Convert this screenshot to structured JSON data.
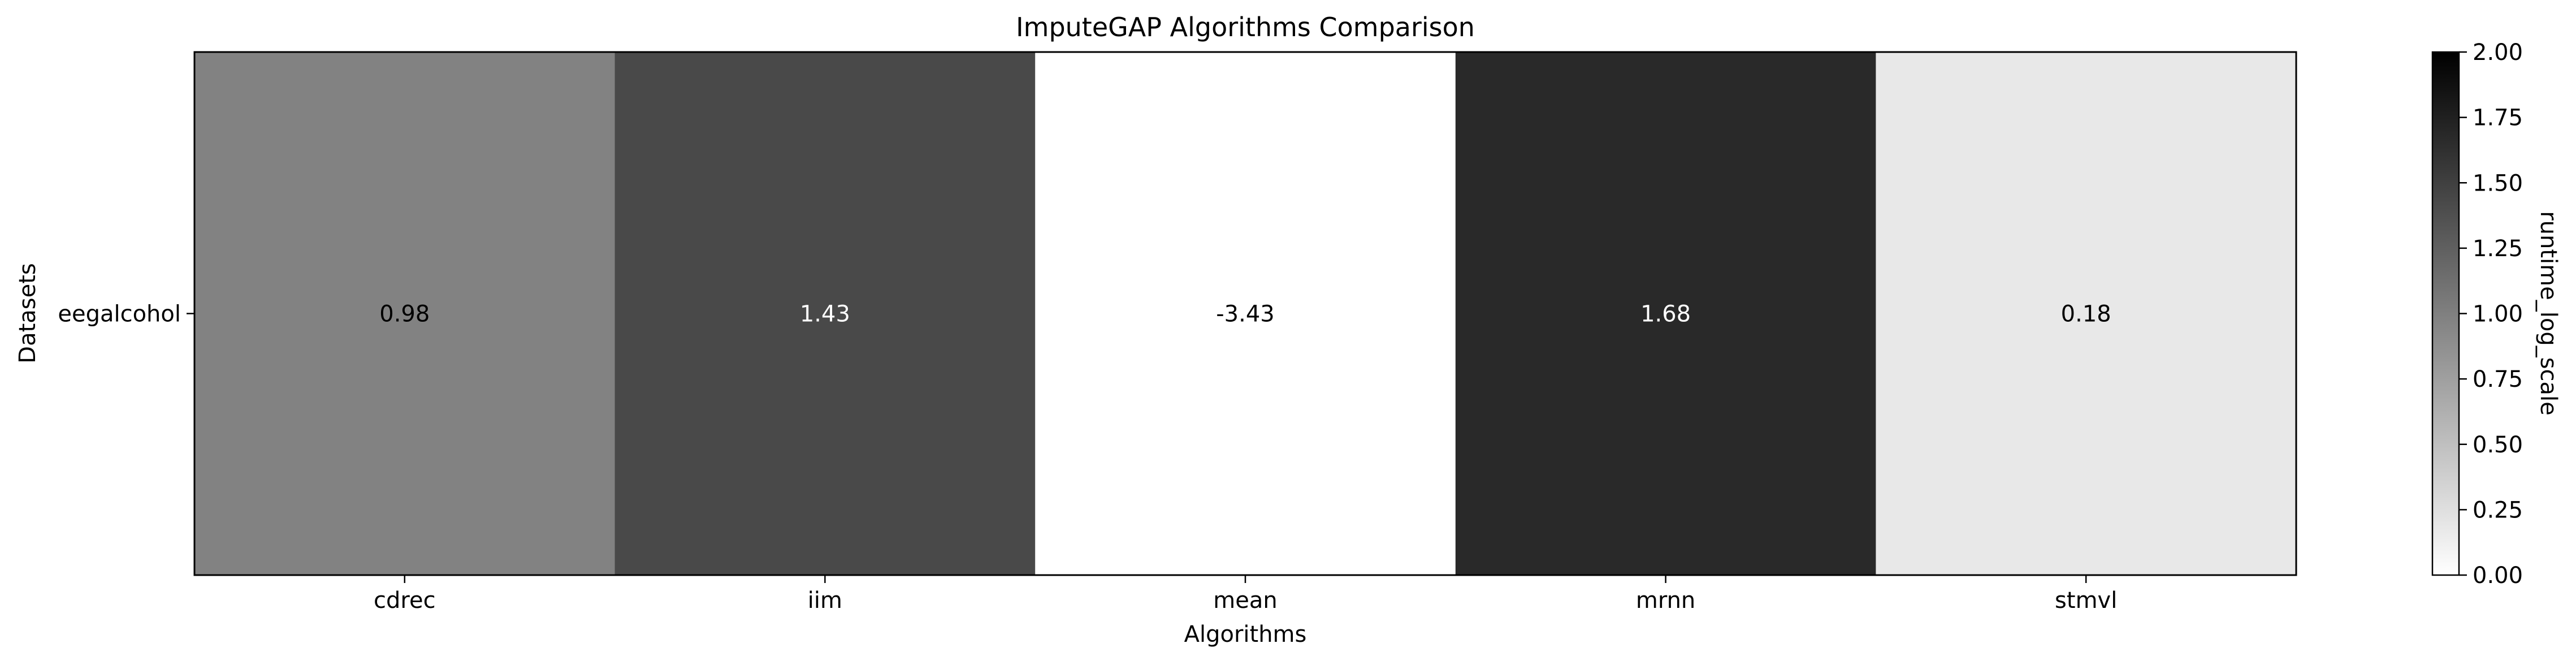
{
  "chart_data": {
    "type": "heatmap",
    "title": "ImputeGAP Algorithms Comparison",
    "xlabel": "Algorithms",
    "ylabel": "Datasets",
    "x": [
      "cdrec",
      "iim",
      "mean",
      "mrnn",
      "stmvl"
    ],
    "y": [
      "eegalcohol"
    ],
    "values": [
      [
        0.98,
        1.43,
        -3.43,
        1.68,
        0.18
      ]
    ],
    "colorbar": {
      "label": "runtime_log_scale",
      "range": [
        0.0,
        2.0
      ],
      "ticks": [
        "0.00",
        "0.25",
        "0.50",
        "0.75",
        "1.00",
        "1.25",
        "1.50",
        "1.75",
        "2.00"
      ],
      "colormap": "Greys",
      "low_color": "#ffffff",
      "high_color": "#000000"
    },
    "legend": "none",
    "grid": false
  }
}
